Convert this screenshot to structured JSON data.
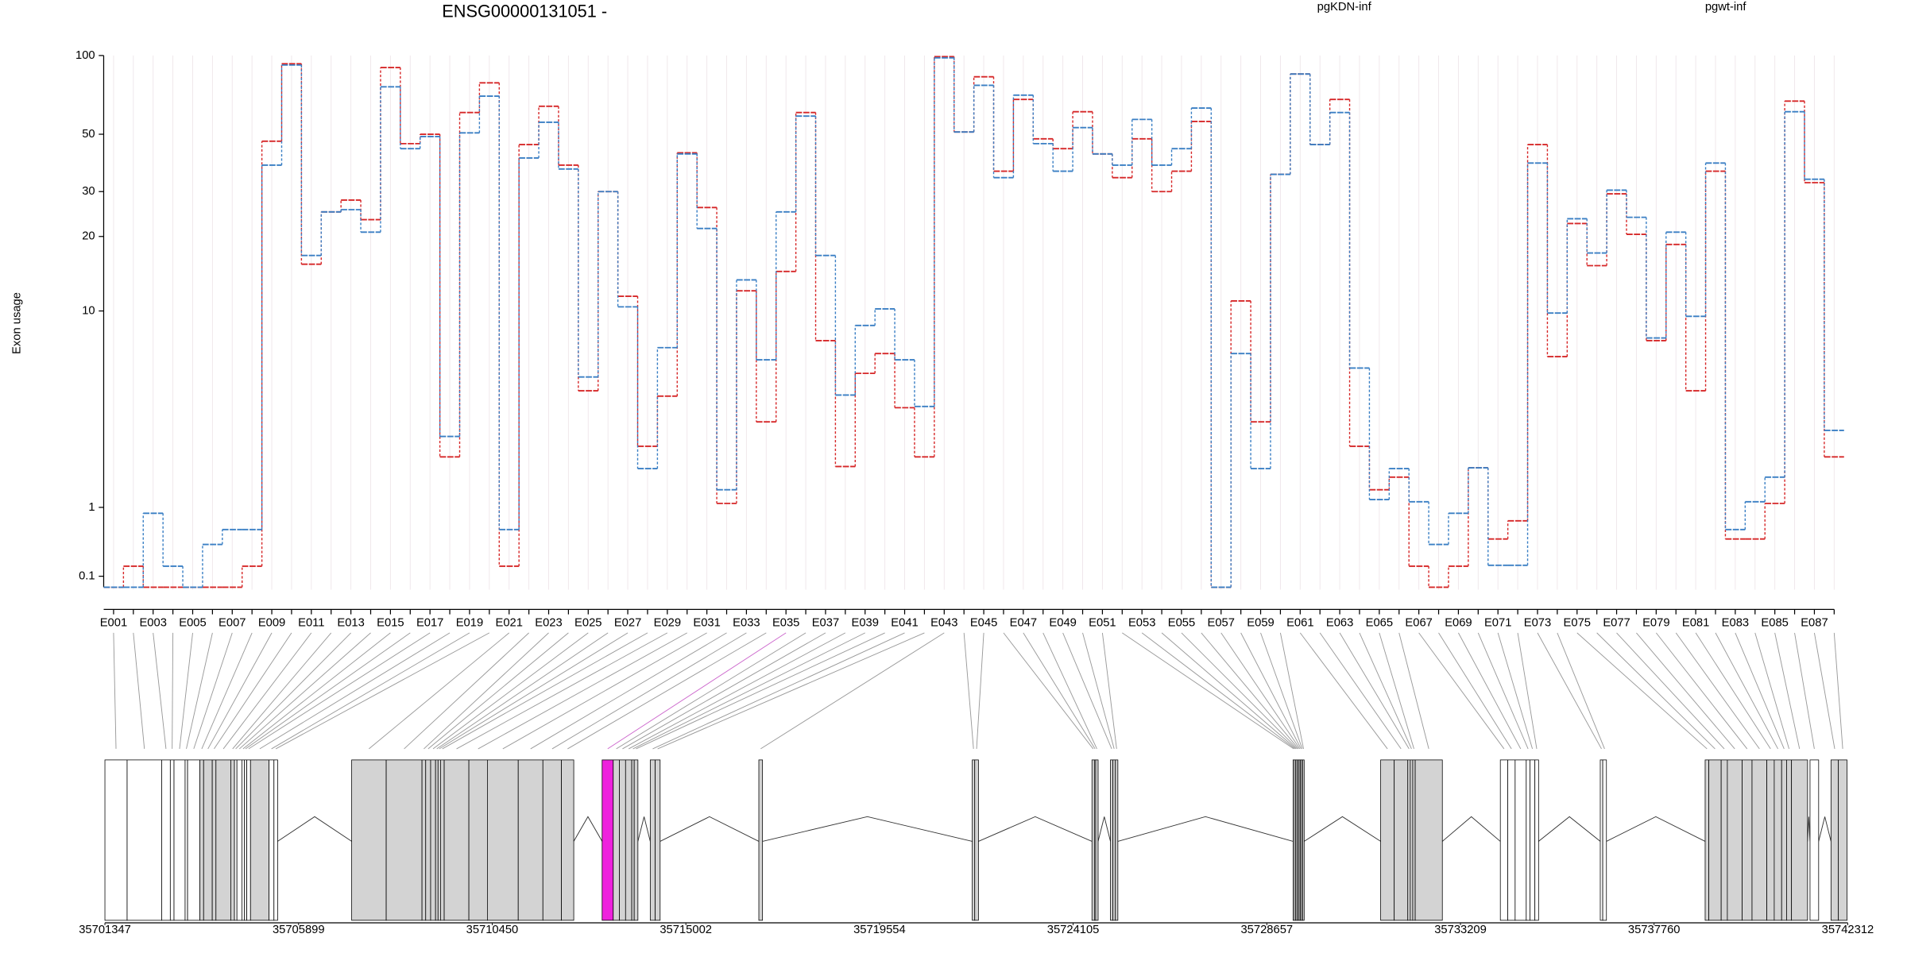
{
  "chart_data": [
    {
      "type": "step",
      "title": "ENSG00000131051 -",
      "ylabel": "Exon usage",
      "yscale": "log1p",
      "ylim": [
        0,
        100
      ],
      "yticks": [
        0.1,
        1,
        10,
        20,
        30,
        50,
        100
      ],
      "categories": [
        "E001",
        null,
        "E003",
        null,
        "E005",
        null,
        "E007",
        null,
        "E009",
        null,
        "E011",
        null,
        "E013",
        null,
        "E015",
        null,
        "E017",
        null,
        "E019",
        null,
        "E021",
        null,
        "E023",
        null,
        "E025",
        null,
        "E027",
        null,
        "E029",
        null,
        "E031",
        null,
        "E033",
        null,
        "E035",
        null,
        "E037",
        null,
        "E039",
        null,
        "E041",
        null,
        "E043",
        null,
        "E045",
        null,
        "E047",
        null,
        "E049",
        null,
        "E051",
        null,
        "E053",
        null,
        "E055",
        null,
        "E057",
        null,
        "E059",
        null,
        "E061",
        null,
        "E063",
        null,
        "E065",
        null,
        "E067",
        null,
        "E069",
        null,
        "E071",
        null,
        "E073",
        null,
        "E075",
        null,
        "E077",
        null,
        "E079",
        null,
        "E081",
        null,
        "E083",
        null,
        "E085",
        null,
        "E087",
        null
      ],
      "series": [
        {
          "name": "pgKDN-inf",
          "color": "#d62728",
          "values": [
            0,
            0.2,
            0,
            0,
            0,
            0,
            0,
            0.2,
            47,
            93,
            15.5,
            25,
            27.8,
            23.3,
            90,
            46,
            50,
            2.1,
            60.6,
            78.7,
            0.2,
            45.6,
            64,
            38,
            4.5,
            30,
            11.5,
            2.4,
            4.25,
            42.4,
            26,
            1.07,
            12.1,
            3.2,
            14.5,
            60.6,
            7.5,
            1.85,
            5.4,
            6.6,
            3.75,
            2.1,
            99,
            51,
            83,
            36,
            68,
            48,
            44,
            61,
            42,
            34,
            48,
            30,
            36,
            56,
            0,
            11,
            3.2,
            35,
            85,
            45.6,
            68,
            2.4,
            1.33,
            1.6,
            0.2,
            0,
            0.2,
            1.82,
            0.52,
            0.78,
            45.6,
            6.4,
            22.5,
            15.3,
            29.4,
            20.4,
            7.5,
            18.6,
            4.5,
            36,
            0.52,
            0.52,
            1.07,
            67,
            32.5,
            2.1
          ]
        },
        {
          "name": "pgwt-inf",
          "color": "#3a7fc4",
          "values": [
            0,
            0,
            0.9,
            0.2,
            0,
            0.45,
            0.65,
            0.65,
            38,
            92,
            16.8,
            25,
            25.5,
            20.8,
            76,
            44,
            49,
            2.7,
            50.6,
            70,
            0.65,
            40.5,
            55.6,
            36.7,
            5.2,
            30,
            10.4,
            1.8,
            7,
            42,
            21.5,
            1.33,
            13.4,
            6.2,
            25,
            58.7,
            16.8,
            4.3,
            8.7,
            10.2,
            6.2,
            3.8,
            98,
            51,
            77,
            34,
            70.6,
            46,
            36,
            53,
            42,
            38,
            57,
            38,
            44,
            63,
            0,
            6.6,
            1.8,
            35,
            85,
            45.6,
            60.6,
            5.7,
            1.14,
            1.8,
            1.1,
            0.45,
            0.9,
            1.82,
            0.21,
            0.21,
            38.7,
            9.8,
            23.5,
            17.2,
            30.4,
            23.8,
            7.7,
            20.8,
            9.5,
            38.7,
            0.65,
            1.1,
            1.6,
            61,
            33.5,
            2.9
          ]
        }
      ]
    },
    {
      "type": "genemodel",
      "xlim": [
        35701347,
        35742312
      ],
      "xticks": [
        35701347,
        35705899,
        35710450,
        35715002,
        35719554,
        35724105,
        35728657,
        35733209,
        35737760,
        35742312
      ],
      "exon_starts": [
        35701347,
        35701869,
        35702681,
        35702884,
        35702971,
        35703232,
        35703290,
        35703580,
        35703667,
        35703870,
        35703957,
        35704305,
        35704392,
        35704450,
        35704566,
        35704624,
        35704682,
        35704769,
        35705204,
        35705320,
        35707147,
        35707959,
        35708800,
        35708887,
        35709003,
        35709119,
        35709177,
        35709235,
        35709322,
        35709902,
        35710337,
        35711062,
        35711642,
        35712077,
        35713034,
        35713295,
        35713440,
        35713585,
        35713730,
        35713788,
        35714165,
        35714281,
        35716717,
        35721734,
        35721792,
        35724547,
        35724605,
        35724634,
        35724982,
        35725040,
        35725098,
        35729274,
        35729303,
        35729332,
        35729361,
        35729390,
        35729419,
        35729448,
        35729477,
        35729506,
        35731333,
        35731652,
        35731971,
        35732029,
        35732087,
        35732145,
        35734146,
        35734320,
        35734494,
        35734755,
        35734842,
        35734958,
        35736495,
        35736553,
        35738960,
        35739047,
        35739337,
        35739482,
        35739830,
        35740062,
        35740410,
        35740584,
        35740758,
        35740874,
        35740990,
        35741425,
        35741918,
        35742092
      ],
      "exon_ends": [
        35701869,
        35702681,
        35702884,
        35702971,
        35703232,
        35703290,
        35703580,
        35703667,
        35703870,
        35703957,
        35704305,
        35704392,
        35704450,
        35704566,
        35704624,
        35704682,
        35704769,
        35705204,
        35705320,
        35705407,
        35707959,
        35708800,
        35708887,
        35709003,
        35709119,
        35709177,
        35709235,
        35709322,
        35709902,
        35710337,
        35711062,
        35711642,
        35712077,
        35712367,
        35713295,
        35713440,
        35713585,
        35713730,
        35713788,
        35713875,
        35714281,
        35714397,
        35716804,
        35721792,
        35721879,
        35724605,
        35724634,
        35724692,
        35725040,
        35725098,
        35725156,
        35729303,
        35729332,
        35729361,
        35729390,
        35729419,
        35729448,
        35729477,
        35729506,
        35729535,
        35731652,
        35731971,
        35732029,
        35732087,
        35732145,
        35732783,
        35734320,
        35734494,
        35734755,
        35734842,
        35734958,
        35735045,
        35736553,
        35736640,
        35739047,
        35739337,
        35739482,
        35739830,
        35740062,
        35740410,
        35740584,
        35740758,
        35740874,
        35740990,
        35741367,
        35741628,
        35742092,
        35742295
      ],
      "exon_fills": [
        "#ffffff",
        "#ffffff",
        "#ffffff",
        "#ffffff",
        "#ffffff",
        "#ffffff",
        "#ffffff",
        "#d3d3d3",
        "#d3d3d3",
        "#d3d3d3",
        "#d3d3d3",
        "#d3d3d3",
        "#ffffff",
        "#ffffff",
        "#ffffff",
        "#ffffff",
        "#ffffff",
        "#d3d3d3",
        "#ffffff",
        "#ffffff",
        "#d3d3d3",
        "#d3d3d3",
        "#d3d3d3",
        "#d3d3d3",
        "#d3d3d3",
        "#d3d3d3",
        "#d3d3d3",
        "#d3d3d3",
        "#d3d3d3",
        "#d3d3d3",
        "#d3d3d3",
        "#d3d3d3",
        "#d3d3d3",
        "#d3d3d3",
        "#ee22dd",
        "#d3d3d3",
        "#d3d3d3",
        "#d3d3d3",
        "#d3d3d3",
        "#d3d3d3",
        "#d3d3d3",
        "#d3d3d3",
        "#d3d3d3",
        "#d3d3d3",
        "#d3d3d3",
        "#d3d3d3",
        "#d3d3d3",
        "#d3d3d3",
        "#d3d3d3",
        "#d3d3d3",
        "#d3d3d3",
        "#ffffff",
        "#ffffff",
        "#ffffff",
        "#ffffff",
        "#ffffff",
        "#ffffff",
        "#ffffff",
        "#ffffff",
        "#ffffff",
        "#d3d3d3",
        "#d3d3d3",
        "#d3d3d3",
        "#d3d3d3",
        "#d3d3d3",
        "#d3d3d3",
        "#ffffff",
        "#ffffff",
        "#ffffff",
        "#ffffff",
        "#ffffff",
        "#ffffff",
        "#ffffff",
        "#ffffff",
        "#d3d3d3",
        "#d3d3d3",
        "#d3d3d3",
        "#d3d3d3",
        "#d3d3d3",
        "#d3d3d3",
        "#d3d3d3",
        "#d3d3d3",
        "#d3d3d3",
        "#d3d3d3",
        "#d3d3d3",
        "#ffffff",
        "#d3d3d3",
        "#d3d3d3"
      ]
    }
  ]
}
